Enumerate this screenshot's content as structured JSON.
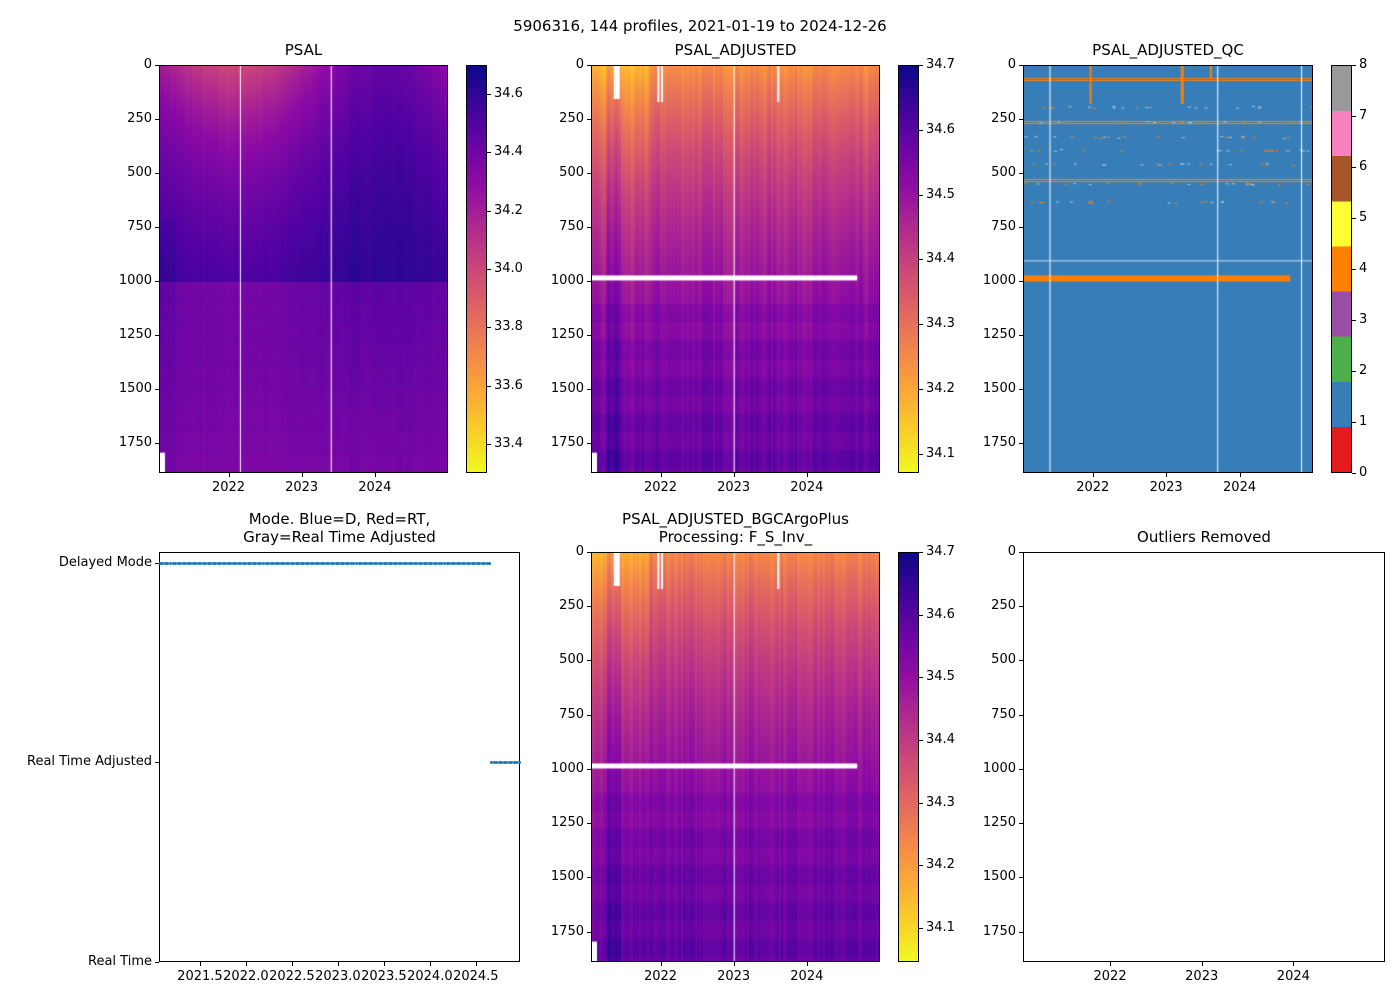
{
  "figure_title": "5906316, 144 profiles, 2021-01-19 to 2024-12-26",
  "chart_data": [
    {
      "id": "psal",
      "type": "heatmap",
      "title": "PSAL",
      "xlim": [
        2021.05,
        2025.0
      ],
      "ylim": [
        0,
        1890
      ],
      "xticks": [
        2022,
        2023,
        2024
      ],
      "xtick_labels": [
        "2022",
        "2023",
        "2024"
      ],
      "yticks": [
        0,
        250,
        500,
        750,
        1000,
        1250,
        1500,
        1750
      ],
      "ytick_labels": [
        "0",
        "250",
        "500",
        "750",
        "1000",
        "1250",
        "1500",
        "1750"
      ],
      "colorbar": {
        "cmap": "plasma_r",
        "range": [
          33.3,
          34.7
        ],
        "ticks": [
          33.4,
          33.6,
          33.8,
          34.0,
          34.2,
          34.4,
          34.6
        ],
        "tick_labels": [
          "33.4",
          "33.6",
          "33.8",
          "34.0",
          "34.2",
          "34.4",
          "34.6"
        ]
      }
    },
    {
      "id": "psal_adj",
      "type": "heatmap",
      "title": "PSAL_ADJUSTED",
      "xlim": [
        2021.05,
        2025.0
      ],
      "ylim": [
        0,
        1890
      ],
      "xticks": [
        2022,
        2023,
        2024
      ],
      "xtick_labels": [
        "2022",
        "2023",
        "2024"
      ],
      "yticks": [
        0,
        250,
        500,
        750,
        1000,
        1250,
        1500,
        1750
      ],
      "ytick_labels": [
        "0",
        "250",
        "500",
        "750",
        "1000",
        "1250",
        "1500",
        "1750"
      ],
      "colorbar": {
        "cmap": "plasma_r",
        "range": [
          34.07,
          34.7
        ],
        "ticks": [
          34.1,
          34.2,
          34.3,
          34.4,
          34.5,
          34.6,
          34.7
        ],
        "tick_labels": [
          "34.1",
          "34.2",
          "34.3",
          "34.4",
          "34.5",
          "34.6",
          "34.7"
        ]
      }
    },
    {
      "id": "psal_adj_qc",
      "type": "heatmap",
      "title": "PSAL_ADJUSTED_QC",
      "xlim": [
        2021.05,
        2025.0
      ],
      "ylim": [
        0,
        1890
      ],
      "xticks": [
        2022,
        2023,
        2024
      ],
      "xtick_labels": [
        "2022",
        "2023",
        "2024"
      ],
      "yticks": [
        0,
        250,
        500,
        750,
        1000,
        1250,
        1500,
        1750
      ],
      "ytick_labels": [
        "0",
        "250",
        "500",
        "750",
        "1000",
        "1250",
        "1500",
        "1750"
      ],
      "colorbar": {
        "cmap": "Set1",
        "range": [
          0,
          8
        ],
        "ticks": [
          0,
          1,
          2,
          3,
          4,
          5,
          6,
          7,
          8
        ],
        "tick_labels": [
          "0",
          "1",
          "2",
          "3",
          "4",
          "5",
          "6",
          "7",
          "8"
        ],
        "colors": [
          "#e41a1c",
          "#377eb8",
          "#4daf4a",
          "#984ea3",
          "#ff7f00",
          "#ffff33",
          "#a65628",
          "#f781bf",
          "#999999"
        ]
      }
    },
    {
      "id": "mode",
      "type": "scatter",
      "title": "Mode. Blue=D, Red=RT,\nGray=Real Time Adjusted",
      "xlim": [
        2021.055,
        2024.98
      ],
      "ylim": [
        0,
        2.055
      ],
      "xticks": [
        2021.5,
        2022.0,
        2022.5,
        2023.0,
        2023.5,
        2024.0,
        2024.5
      ],
      "xtick_labels": [
        "2021.5",
        "2022.0",
        "2022.5",
        "2023.0",
        "2023.5",
        "2024.0",
        "2024.5"
      ],
      "yticks": [
        0,
        1,
        2
      ],
      "ytick_labels": [
        "Real Time",
        "Real Time Adjusted",
        "Delayed Mode"
      ],
      "series": [
        {
          "name": "Delayed Mode",
          "y": 2,
          "x_start": 2021.06,
          "x_end": 2024.66,
          "count": 132
        },
        {
          "name": "Real Time Adjusted",
          "y": 1,
          "x_start": 2024.68,
          "x_end": 2024.98,
          "count": 12
        }
      ]
    },
    {
      "id": "bgc",
      "type": "heatmap",
      "title": "PSAL_ADJUSTED_BGCArgoPlus\nProcessing: F_S_Inv_",
      "xlim": [
        2021.05,
        2025.0
      ],
      "ylim": [
        0,
        1890
      ],
      "xticks": [
        2022,
        2023,
        2024
      ],
      "xtick_labels": [
        "2022",
        "2023",
        "2024"
      ],
      "yticks": [
        0,
        250,
        500,
        750,
        1000,
        1250,
        1500,
        1750
      ],
      "ytick_labels": [
        "0",
        "250",
        "500",
        "750",
        "1000",
        "1250",
        "1500",
        "1750"
      ],
      "colorbar": {
        "cmap": "plasma_r",
        "range": [
          34.046,
          34.7
        ],
        "ticks": [
          34.1,
          34.2,
          34.3,
          34.4,
          34.5,
          34.6,
          34.7
        ],
        "tick_labels": [
          "34.1",
          "34.2",
          "34.3",
          "34.4",
          "34.5",
          "34.6",
          "34.7"
        ]
      }
    },
    {
      "id": "outliers",
      "type": "scatter",
      "title": "Outliers Removed",
      "xlim": [
        2021.05,
        2025.0
      ],
      "ylim": [
        0,
        1890
      ],
      "xticks": [
        2022,
        2023,
        2024
      ],
      "xtick_labels": [
        "2022",
        "2023",
        "2024"
      ],
      "yticks": [
        0,
        250,
        500,
        750,
        1000,
        1250,
        1500,
        1750
      ],
      "ytick_labels": [
        "0",
        "250",
        "500",
        "750",
        "1000",
        "1250",
        "1500",
        "1750"
      ],
      "series": []
    }
  ]
}
